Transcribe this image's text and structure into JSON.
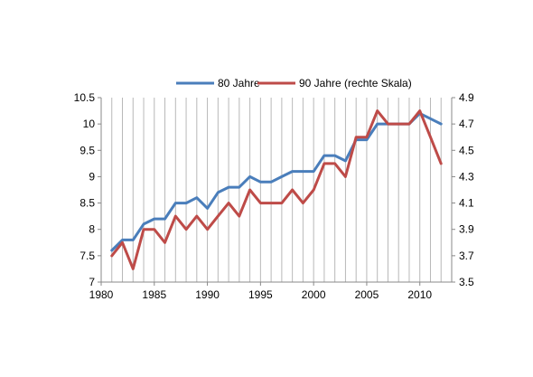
{
  "chart_data": {
    "type": "line",
    "x": [
      1981,
      1982,
      1983,
      1984,
      1985,
      1986,
      1987,
      1988,
      1989,
      1990,
      1991,
      1992,
      1993,
      1994,
      1995,
      1996,
      1997,
      1998,
      1999,
      2000,
      2001,
      2002,
      2003,
      2004,
      2005,
      2006,
      2007,
      2008,
      2009,
      2010,
      2011,
      2012
    ],
    "series": [
      {
        "name": "80 Jahre",
        "axis": "left",
        "color": "#4a7ebb",
        "values": [
          7.6,
          7.8,
          7.8,
          8.1,
          8.2,
          8.2,
          8.5,
          8.5,
          8.6,
          8.4,
          8.7,
          8.8,
          8.8,
          9.0,
          8.9,
          8.9,
          9.0,
          9.1,
          9.1,
          9.1,
          9.4,
          9.4,
          9.3,
          9.7,
          9.7,
          10.0,
          10.0,
          10.0,
          10.0,
          10.2,
          10.1,
          10.0
        ]
      },
      {
        "name": "90 Jahre (rechte Skala)",
        "axis": "right",
        "color": "#be4b48",
        "values": [
          3.7,
          3.8,
          3.6,
          3.9,
          3.9,
          3.8,
          4.0,
          3.9,
          4.0,
          3.9,
          4.0,
          4.1,
          4.0,
          4.2,
          4.1,
          4.1,
          4.1,
          4.2,
          4.1,
          4.2,
          4.4,
          4.4,
          4.3,
          4.6,
          4.6,
          4.8,
          4.7,
          4.7,
          4.7,
          4.8,
          4.6,
          4.4
        ]
      }
    ],
    "ylim_left": [
      7,
      10.5
    ],
    "yticks_left": [
      "7",
      "7.5",
      "8",
      "8.5",
      "9",
      "9.5",
      "10",
      "10.5"
    ],
    "ylim_right": [
      3.5,
      4.9
    ],
    "yticks_right": [
      "3.5",
      "3.7",
      "3.9",
      "4.1",
      "4.3",
      "4.5",
      "4.7",
      "4.9"
    ],
    "xlim": [
      1980,
      2013
    ],
    "xticks": [
      "1980",
      "1985",
      "1990",
      "1995",
      "2000",
      "2005",
      "2010"
    ],
    "grid": "vertical",
    "legend_position": "top"
  }
}
